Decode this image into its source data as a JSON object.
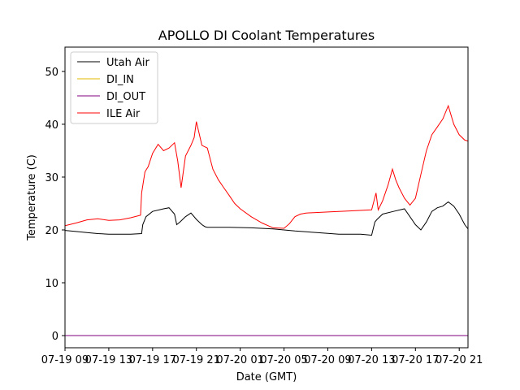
{
  "chart_data": {
    "type": "line",
    "title": "APOLLO DI Coolant Temperatures",
    "xlabel": "Date (GMT)",
    "ylabel": "Temperature (C)",
    "ylim": [
      -2.3,
      54.6
    ],
    "xlim": [
      0,
      36.8
    ],
    "yticks": [
      0,
      10,
      20,
      30,
      40,
      50
    ],
    "ytick_labels": [
      "0",
      "10",
      "20",
      "30",
      "40",
      "50"
    ],
    "xticks": [
      0,
      4,
      8,
      12,
      16,
      20,
      24,
      28,
      32,
      36
    ],
    "xtick_labels": [
      "07-19 09",
      "07-19 13",
      "07-19 17",
      "07-19 21",
      "07-20 01",
      "07-20 05",
      "07-20 09",
      "07-20 13",
      "07-20 17",
      "07-20 21"
    ],
    "legend_position": "top-left",
    "series": [
      {
        "name": "Utah Air",
        "color": "#000000",
        "x": [
          0,
          1,
          2,
          3,
          4,
          6,
          7,
          7.1,
          7.4,
          8,
          9,
          9.5,
          10,
          10.2,
          10.5,
          11,
          11.5,
          12,
          12.5,
          12.8,
          13,
          15,
          17,
          19,
          21,
          23,
          25,
          27,
          28,
          28.3,
          28.5,
          29,
          30,
          31,
          32,
          32.5,
          33,
          33.5,
          34,
          34.5,
          35,
          35.5,
          36,
          36.5,
          36.8
        ],
        "y": [
          19.9,
          19.7,
          19.5,
          19.3,
          19.2,
          19.2,
          19.3,
          21.0,
          22.5,
          23.5,
          24.0,
          24.2,
          23.0,
          21.0,
          21.5,
          22.5,
          23.2,
          22.0,
          21.0,
          20.6,
          20.5,
          20.5,
          20.4,
          20.2,
          19.8,
          19.5,
          19.2,
          19.2,
          19.0,
          21.5,
          22.0,
          23.0,
          23.5,
          24.0,
          21.0,
          20.0,
          21.5,
          23.5,
          24.2,
          24.5,
          25.3,
          24.5,
          23.0,
          21.0,
          20.2
        ]
      },
      {
        "name": "DI_IN",
        "color": "#e6b800",
        "x": [
          0,
          36.8
        ],
        "y": [
          0,
          0
        ]
      },
      {
        "name": "DI_OUT",
        "color": "#800080",
        "x": [
          0,
          36.8
        ],
        "y": [
          0,
          0
        ]
      },
      {
        "name": "ILE Air",
        "color": "#ff0000",
        "x": [
          0,
          1,
          2,
          3,
          4,
          5,
          6,
          6.9,
          7.0,
          7.3,
          7.6,
          8.0,
          8.5,
          9.0,
          9.5,
          10.0,
          10.3,
          10.6,
          11.0,
          11.5,
          11.8,
          12.0,
          12.5,
          13.0,
          13.5,
          14.0,
          14.5,
          15.0,
          15.5,
          16.0,
          17.0,
          18.0,
          19.0,
          20.0,
          20.5,
          21.0,
          21.5,
          22.0,
          24.0,
          26.0,
          28.0,
          28.4,
          28.6,
          29.0,
          29.5,
          29.9,
          30.2,
          30.5,
          31.0,
          31.5,
          32.0,
          32.5,
          33.0,
          33.5,
          34.0,
          34.5,
          35.0,
          35.5,
          36.0,
          36.5,
          36.8
        ],
        "y": [
          20.8,
          21.3,
          21.9,
          22.1,
          21.8,
          21.9,
          22.3,
          22.8,
          27.0,
          31.0,
          32.0,
          34.5,
          36.2,
          35.0,
          35.5,
          36.5,
          33.0,
          28.0,
          34.0,
          36.0,
          37.5,
          40.5,
          36.0,
          35.5,
          31.5,
          29.5,
          28.0,
          26.5,
          25.0,
          24.0,
          22.5,
          21.3,
          20.4,
          20.3,
          21.2,
          22.5,
          23.0,
          23.2,
          23.4,
          23.6,
          23.8,
          27.0,
          23.8,
          25.5,
          28.5,
          31.5,
          29.5,
          28.0,
          26.0,
          24.7,
          26.0,
          30.5,
          35.0,
          38.0,
          39.5,
          41.0,
          43.5,
          40.0,
          38.0,
          37.0,
          36.8
        ]
      }
    ]
  }
}
